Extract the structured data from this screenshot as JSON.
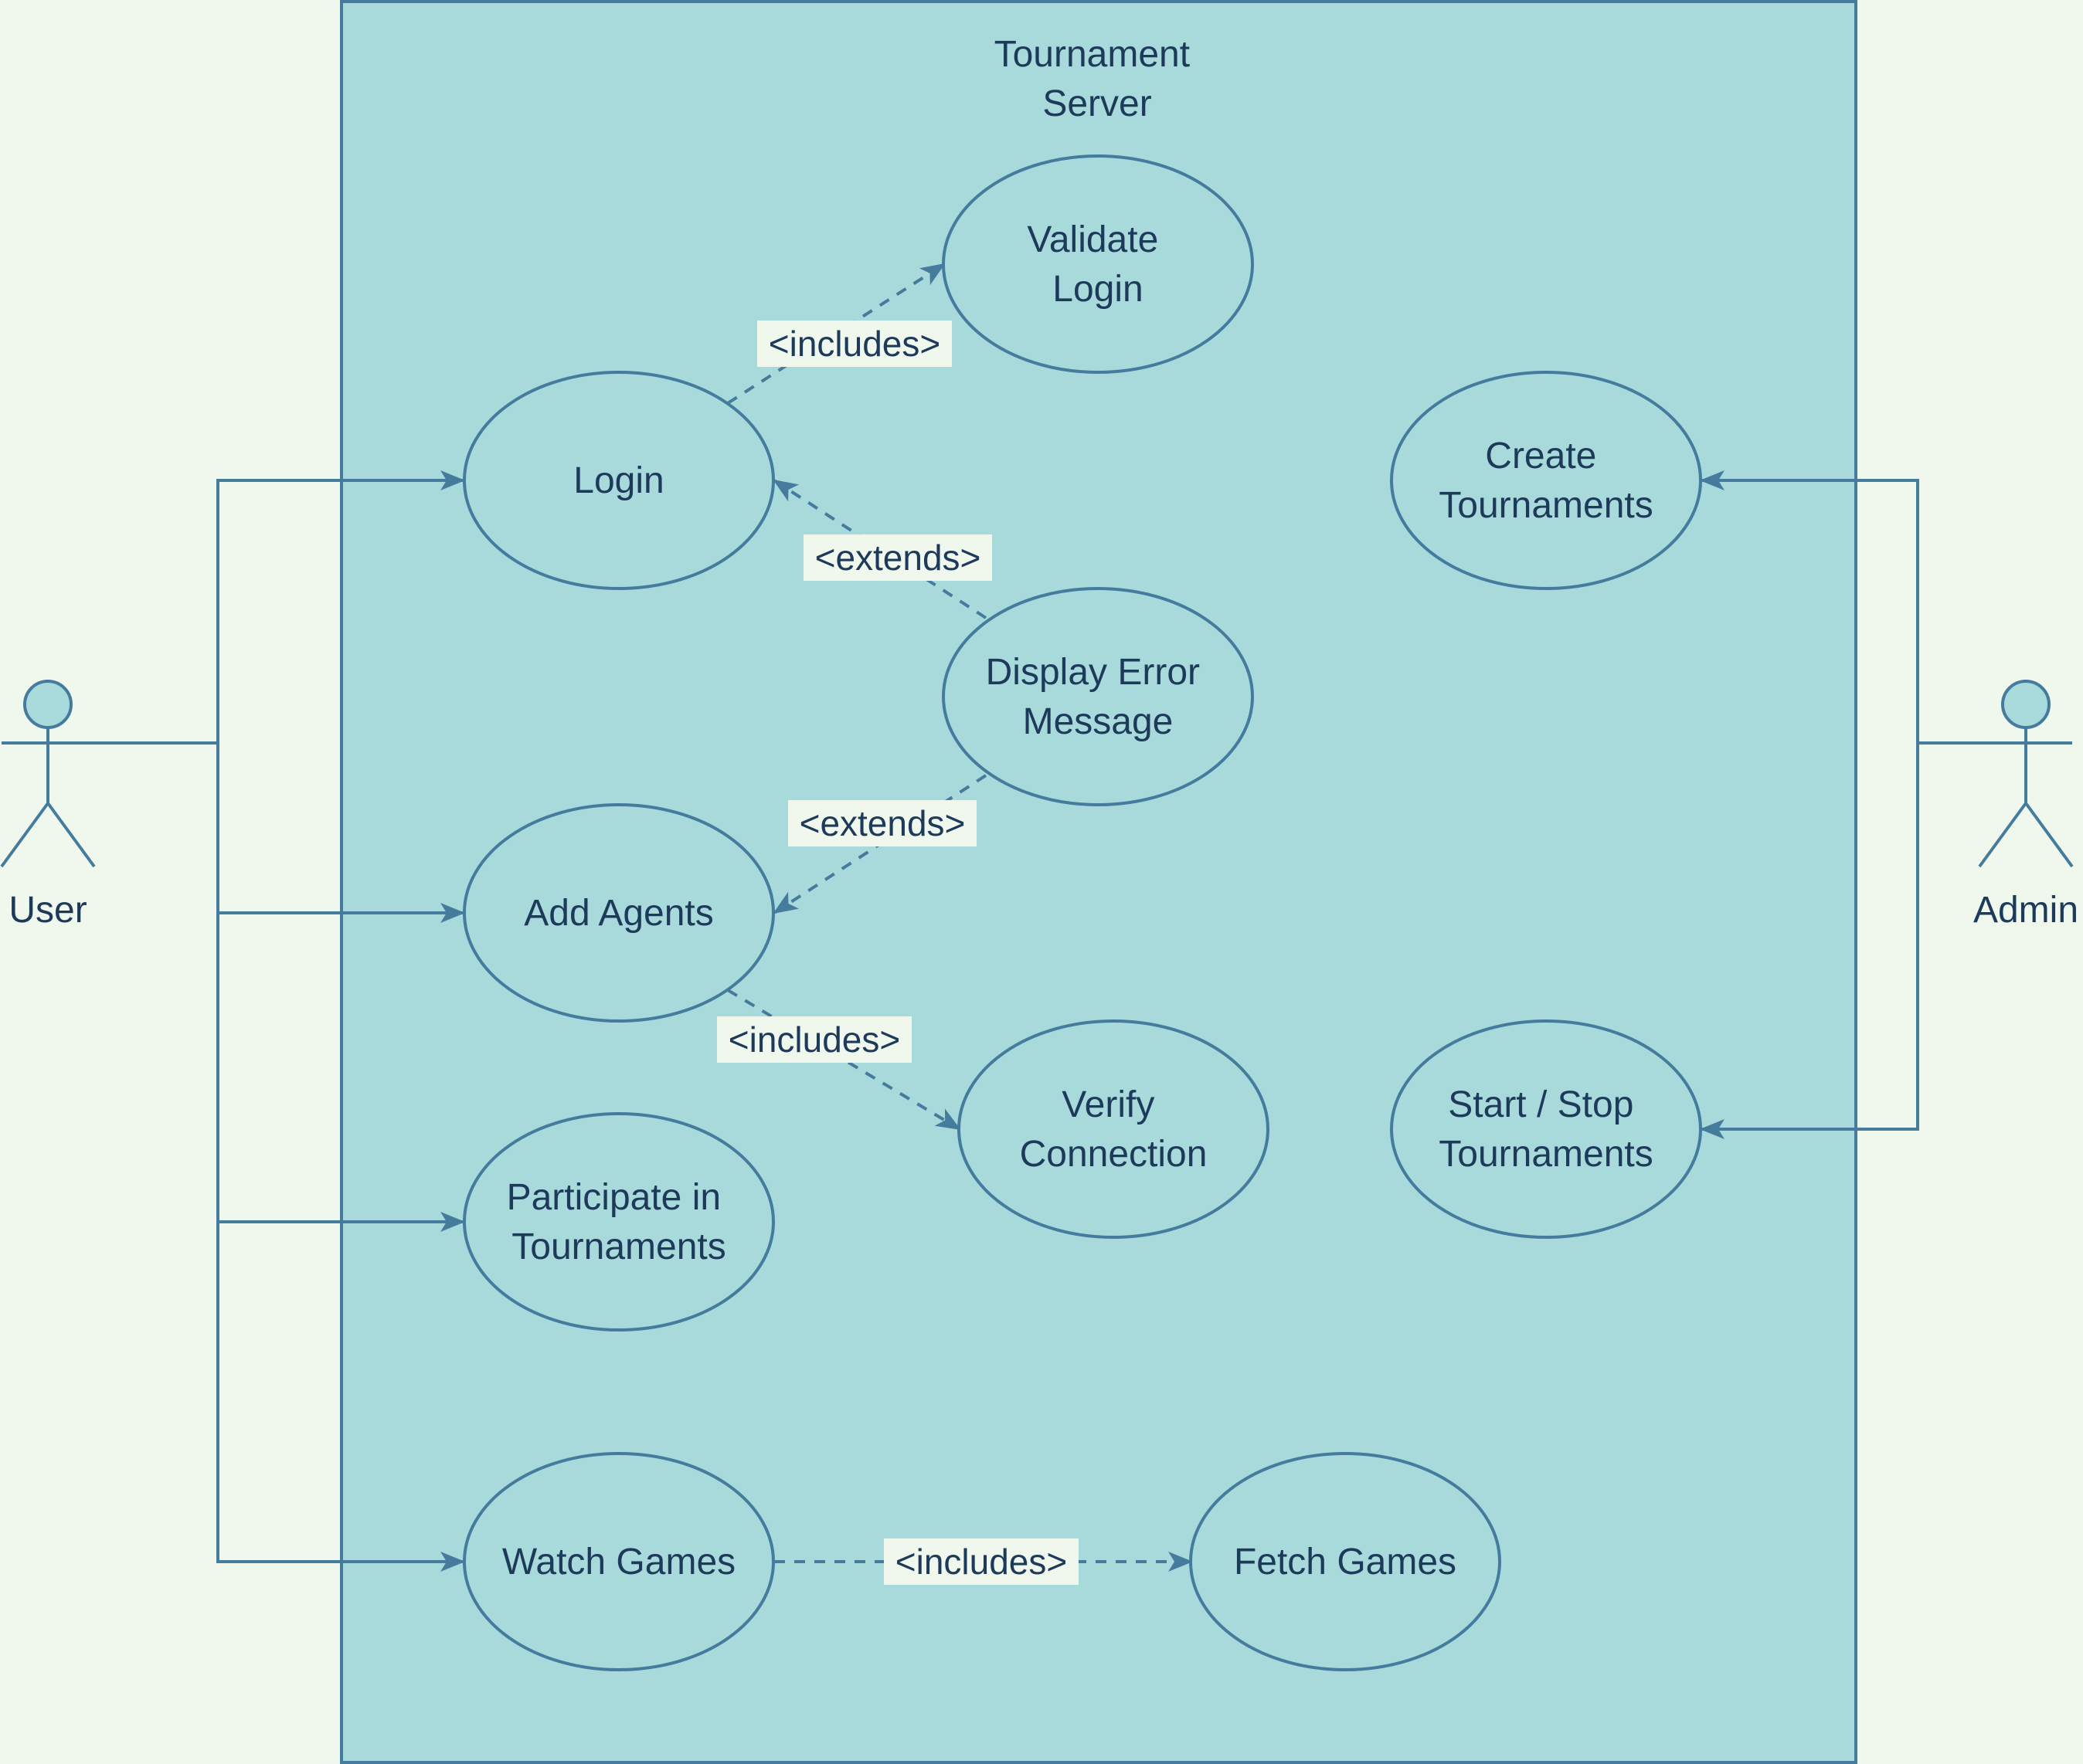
{
  "colors": {
    "background": "#f0f8ee",
    "system_fill": "#a8dadc",
    "stroke": "#457b9d",
    "text": "#1e3a5a",
    "label_bg": "#f0f8ee"
  },
  "system": {
    "title_lines": [
      "Tournament",
      "Server"
    ]
  },
  "actors": {
    "user": {
      "name": "User"
    },
    "admin": {
      "name": "Admin"
    }
  },
  "use_cases": {
    "validate_login": {
      "lines": [
        "Validate",
        "Login"
      ]
    },
    "login": {
      "lines": [
        "Login"
      ]
    },
    "create_tournaments": {
      "lines": [
        "Create",
        "Tournaments"
      ]
    },
    "display_error": {
      "lines": [
        "Display Error",
        "Message"
      ]
    },
    "add_agents": {
      "lines": [
        "Add Agents"
      ]
    },
    "verify_connection": {
      "lines": [
        "Verify",
        "Connection"
      ]
    },
    "start_stop": {
      "lines": [
        "Start / Stop",
        "Tournaments"
      ]
    },
    "participate": {
      "lines": [
        "Participate in",
        "Tournaments"
      ]
    },
    "watch_games": {
      "lines": [
        "Watch Games"
      ]
    },
    "fetch_games": {
      "lines": [
        "Fetch Games"
      ]
    }
  },
  "relations": {
    "login_includes_validate": "<includes>",
    "error_extends_login": "<extends>",
    "error_extends_add_agents": "<extends>",
    "add_agents_includes_verify": "<includes>",
    "watch_includes_fetch": "<includes>"
  }
}
